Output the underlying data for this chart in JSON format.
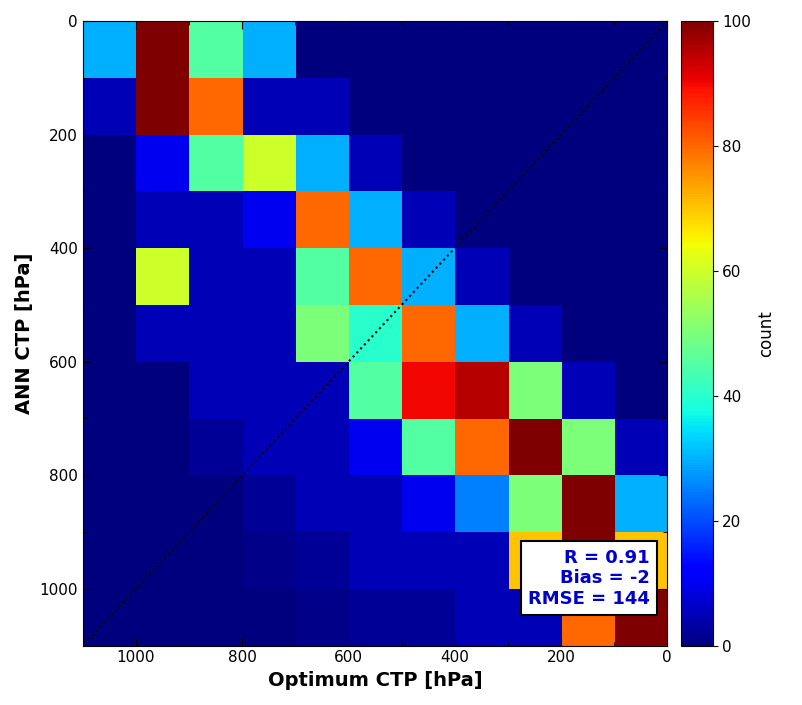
{
  "xlabel": "Optimum CTP [hPa]",
  "ylabel": "ANN CTP [hPa]",
  "colorbar_label": "count",
  "stats_text": "R = 0.91\nBias = -2\nRMSE = 144",
  "stats_color": "#0000cc",
  "vmin": 0,
  "vmax": 100,
  "bin_edges": [
    0,
    100,
    200,
    300,
    400,
    500,
    600,
    700,
    800,
    900,
    1000,
    1100
  ],
  "figsize": [
    8.02,
    7.05
  ],
  "dpi": 100,
  "hist": [
    [
      0,
      0,
      0,
      0,
      0,
      0,
      0,
      30,
      45,
      100,
      30
    ],
    [
      0,
      0,
      0,
      0,
      0,
      0,
      5,
      5,
      80,
      100,
      5
    ],
    [
      0,
      0,
      0,
      0,
      0,
      5,
      30,
      60,
      45,
      10,
      0
    ],
    [
      0,
      0,
      0,
      0,
      5,
      30,
      80,
      10,
      5,
      5,
      0
    ],
    [
      0,
      0,
      0,
      5,
      30,
      80,
      45,
      5,
      5,
      60,
      0
    ],
    [
      0,
      0,
      5,
      30,
      80,
      40,
      50,
      5,
      5,
      5,
      0
    ],
    [
      0,
      5,
      50,
      95,
      90,
      45,
      5,
      5,
      5,
      0,
      0
    ],
    [
      5,
      50,
      100,
      80,
      45,
      10,
      5,
      5,
      2,
      0,
      0
    ],
    [
      30,
      100,
      50,
      25,
      10,
      5,
      5,
      2,
      0,
      0,
      0
    ],
    [
      70,
      100,
      70,
      5,
      5,
      5,
      2,
      1,
      0,
      0,
      0
    ],
    [
      100,
      80,
      5,
      5,
      2,
      2,
      1,
      0,
      0,
      0,
      0
    ]
  ]
}
